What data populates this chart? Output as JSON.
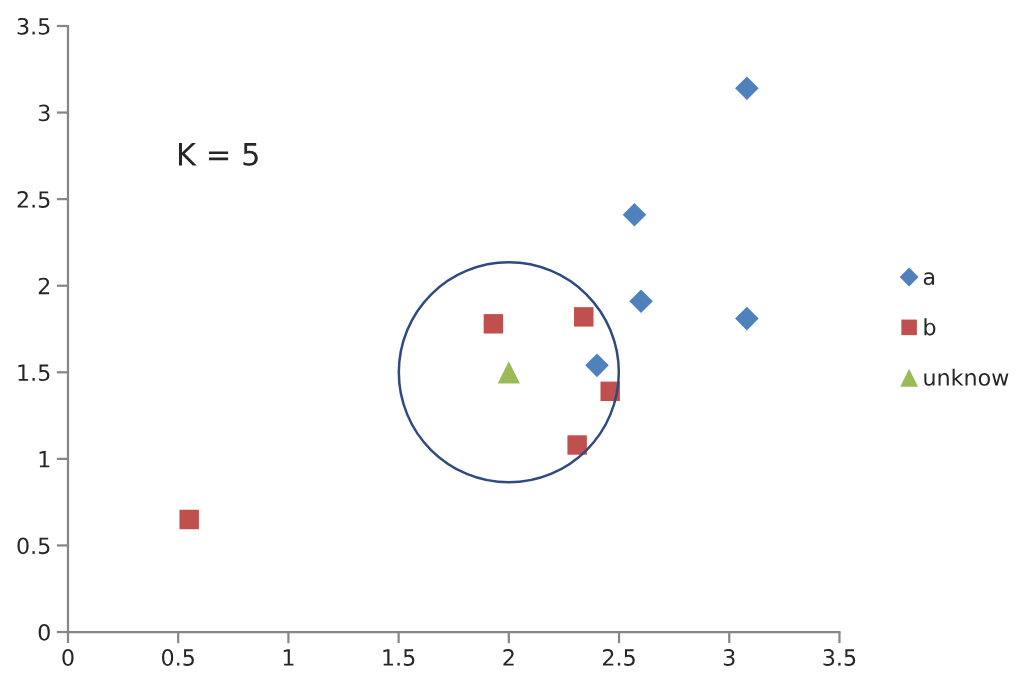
{
  "chart_data": {
    "type": "scatter",
    "series": [
      {
        "name": "a",
        "color": "#4f81bd",
        "marker": "diamond",
        "x": [
          3.08,
          2.57,
          2.6,
          3.08,
          2.4
        ],
        "values": [
          3.14,
          2.41,
          1.91,
          1.81,
          1.54
        ]
      },
      {
        "name": "b",
        "color": "#c0504d",
        "marker": "square",
        "x": [
          1.93,
          2.34,
          2.46,
          2.31,
          0.55
        ],
        "values": [
          1.78,
          1.82,
          1.39,
          1.08,
          0.65
        ]
      },
      {
        "name": "unknow",
        "color": "#9bbb59",
        "marker": "triangle",
        "x": [
          2.0
        ],
        "values": [
          1.5
        ]
      }
    ],
    "annotations": [
      "K = 5"
    ],
    "xlim": [
      0,
      3.5
    ],
    "ylim": [
      0,
      3.5
    ],
    "xticks": [
      0,
      0.5,
      1,
      1.5,
      2,
      2.5,
      3,
      3.5
    ],
    "yticks": [
      0,
      0.5,
      1,
      1.5,
      2,
      2.5,
      3,
      3.5
    ],
    "grid": false,
    "legend": "right"
  }
}
